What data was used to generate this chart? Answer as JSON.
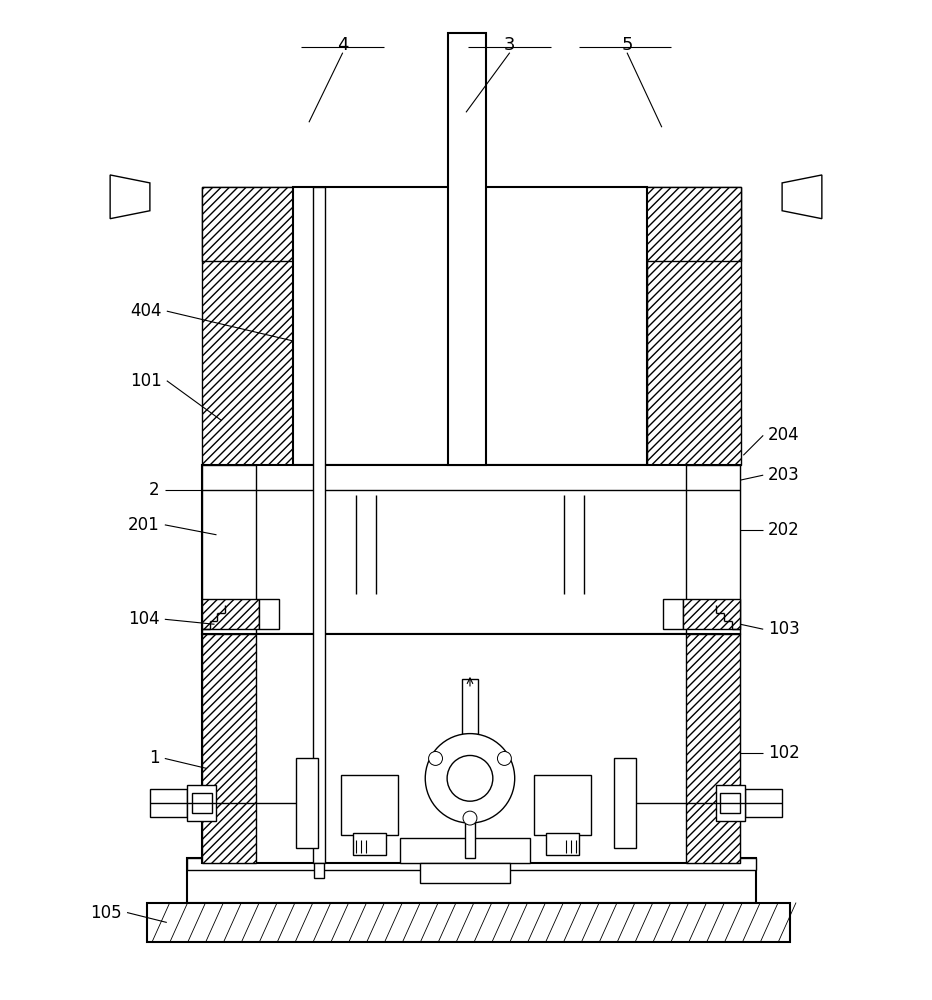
{
  "bg_color": "#ffffff",
  "lc": "#000000",
  "lw": 1.0,
  "lw2": 1.5,
  "fig_w": 9.32,
  "fig_h": 10.0,
  "xlim": [
    0,
    932
  ],
  "ylim": [
    0,
    1000
  ]
}
